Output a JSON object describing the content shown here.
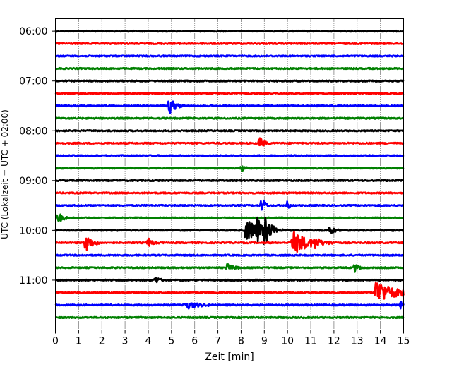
{
  "chart_data": {
    "type": "line",
    "title": "",
    "xlabel": "Zeit  [min]",
    "ylabel": "UTC (Lokalzeit = UTC + 02:00)",
    "xlim": [
      0,
      15
    ],
    "x_ticks": [
      0,
      1,
      2,
      3,
      4,
      5,
      6,
      7,
      8,
      9,
      10,
      11,
      12,
      13,
      14,
      15
    ],
    "y_start": "05:45",
    "y_ticks": [
      "06:00",
      "07:00",
      "08:00",
      "09:00",
      "10:00",
      "11:00"
    ],
    "grid": "vertical-dotted",
    "trace_colors": [
      "#000000",
      "#ff0000",
      "#0000ff",
      "#008000"
    ],
    "rows": [
      {
        "start": "06:00",
        "events": []
      },
      {
        "start": "06:15",
        "events": []
      },
      {
        "start": "06:30",
        "events": []
      },
      {
        "start": "06:45",
        "events": []
      },
      {
        "start": "07:00",
        "events": []
      },
      {
        "start": "07:15",
        "events": []
      },
      {
        "start": "07:30",
        "events": [
          {
            "t": 4.9,
            "amp": 2.6,
            "dur": 0.4
          }
        ]
      },
      {
        "start": "07:45",
        "events": []
      },
      {
        "start": "08:00",
        "events": []
      },
      {
        "start": "08:15",
        "events": [
          {
            "t": 8.8,
            "amp": 1.6,
            "dur": 0.3
          }
        ]
      },
      {
        "start": "08:30",
        "events": []
      },
      {
        "start": "08:45",
        "events": [
          {
            "t": 8.0,
            "amp": 1.3,
            "dur": 0.2
          }
        ]
      },
      {
        "start": "09:00",
        "events": []
      },
      {
        "start": "09:15",
        "events": []
      },
      {
        "start": "09:30",
        "events": [
          {
            "t": 8.9,
            "amp": 3.0,
            "dur": 0.2
          },
          {
            "t": 10.0,
            "amp": 1.2,
            "dur": 0.2
          }
        ]
      },
      {
        "start": "09:45",
        "events": [
          {
            "t": 0.1,
            "amp": 1.8,
            "dur": 0.3
          }
        ]
      },
      {
        "start": "10:00",
        "events": [
          {
            "t": 8.2,
            "amp": 3.2,
            "dur": 1.0
          },
          {
            "t": 8.7,
            "amp": 3.2,
            "dur": 0.2
          },
          {
            "t": 9.0,
            "amp": 4.5,
            "dur": 0.4
          },
          {
            "t": 11.8,
            "amp": 1.3,
            "dur": 0.3
          }
        ]
      },
      {
        "start": "10:15",
        "events": [
          {
            "t": 1.3,
            "amp": 3.0,
            "dur": 0.4
          },
          {
            "t": 4.0,
            "amp": 1.3,
            "dur": 0.3
          },
          {
            "t": 10.2,
            "amp": 3.4,
            "dur": 1.2
          },
          {
            "t": 11.2,
            "amp": 1.2,
            "dur": 0.2
          }
        ]
      },
      {
        "start": "10:30",
        "events": []
      },
      {
        "start": "10:45",
        "events": [
          {
            "t": 7.4,
            "amp": 1.0,
            "dur": 0.4
          },
          {
            "t": 12.9,
            "amp": 1.5,
            "dur": 0.2
          }
        ]
      },
      {
        "start": "11:00",
        "events": [
          {
            "t": 4.3,
            "amp": 1.0,
            "dur": 0.3
          }
        ]
      },
      {
        "start": "11:15",
        "events": [
          {
            "t": 13.8,
            "amp": 3.5,
            "dur": 1.3
          }
        ]
      },
      {
        "start": "11:30",
        "events": [
          {
            "t": 5.6,
            "amp": 1.2,
            "dur": 0.8
          },
          {
            "t": 14.9,
            "amp": 1.3,
            "dur": 0.2
          }
        ]
      },
      {
        "start": "11:45",
        "events": []
      }
    ]
  }
}
